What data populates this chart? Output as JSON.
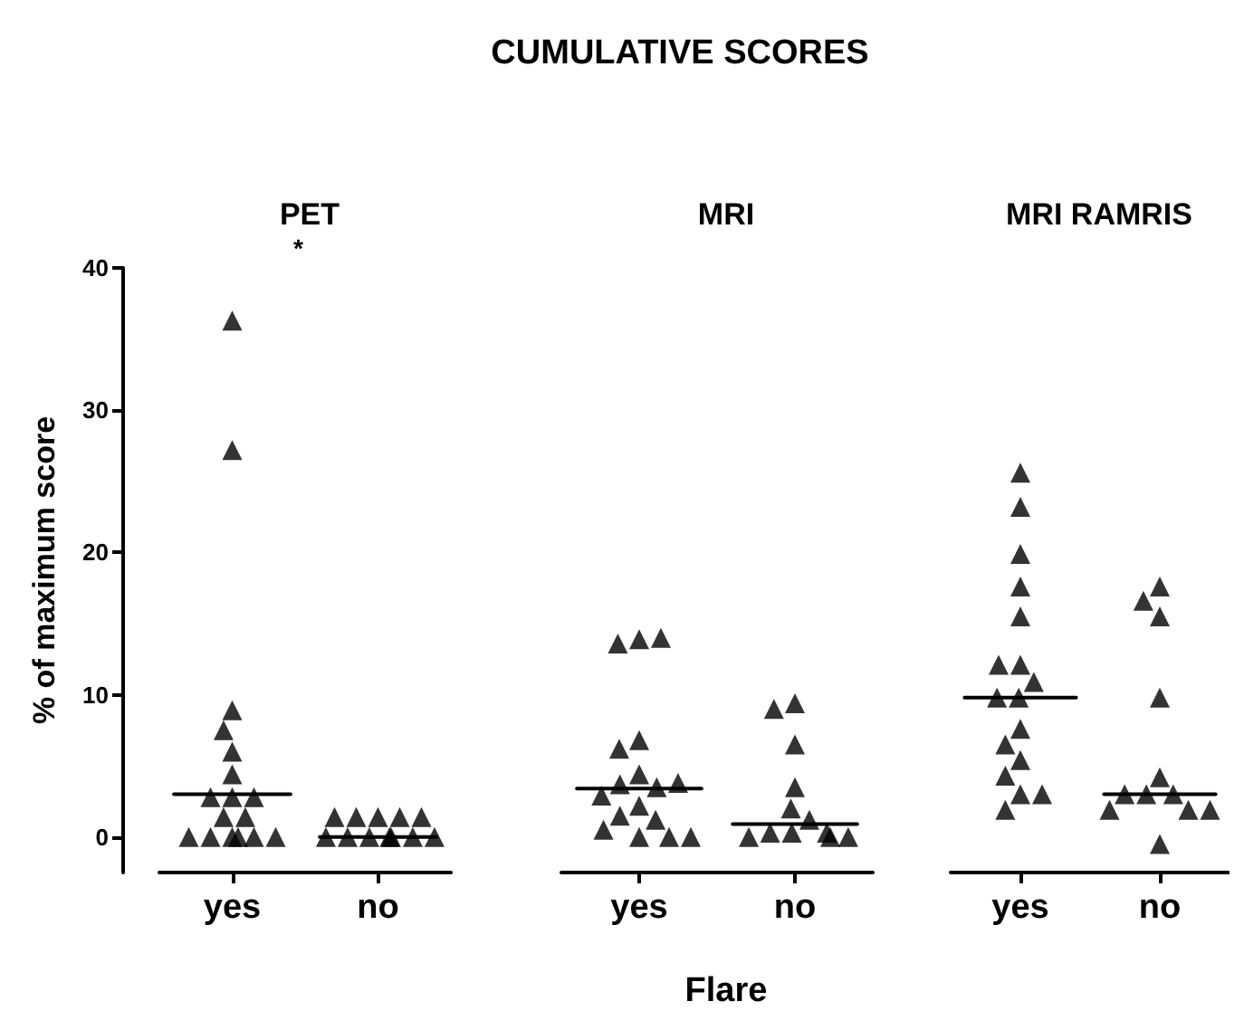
{
  "chart_data": [
    {
      "type": "scatter",
      "title": "PET",
      "ylabel": "% of maximum score",
      "annotations": [
        "*"
      ],
      "categories": [
        "yes",
        "no"
      ],
      "ylim": [
        -2.5,
        40
      ],
      "yticks": [
        0,
        10,
        20,
        30,
        40
      ],
      "grid": false,
      "series": [
        {
          "marker": "triangle",
          "color": "#000000",
          "x": [
            "yes",
            "yes",
            "yes",
            "yes",
            "yes",
            "yes",
            "yes",
            "yes",
            "yes",
            "yes",
            "yes",
            "yes",
            "yes",
            "yes",
            "yes",
            "yes",
            "yes"
          ],
          "values": [
            36.3,
            27.2,
            8.9,
            7.5,
            6,
            4.4,
            2.8,
            2.8,
            2.8,
            1.4,
            1.4,
            0,
            0,
            0,
            0,
            0,
            0
          ]
        },
        {
          "marker": "triangle",
          "color": "#000000",
          "x": [
            "no",
            "no",
            "no",
            "no",
            "no",
            "no",
            "no",
            "no",
            "no",
            "no",
            "no",
            "no"
          ],
          "values": [
            1.4,
            1.4,
            1.4,
            1.4,
            1.4,
            0,
            0,
            0,
            0,
            0,
            0,
            0
          ]
        }
      ],
      "ref_lines": [
        {
          "axis": "y",
          "value": 3,
          "color": "#000000",
          "line_style": "solid"
        },
        {
          "axis": "y",
          "value": 0,
          "color": "#000000",
          "line_style": "solid"
        }
      ]
    },
    {
      "type": "scatter",
      "title": "MRI",
      "xlabel": "Flare",
      "annotations": [
        "CUMULATIVE SCORES"
      ],
      "tick_labels": "x",
      "categories": [
        "yes",
        "no"
      ],
      "ylim": [
        -2.5,
        40
      ],
      "grid": false,
      "series": [
        {
          "marker": "triangle",
          "color": "#000000",
          "x": [
            "yes",
            "yes",
            "yes",
            "yes",
            "yes",
            "yes",
            "yes",
            "yes",
            "yes",
            "yes",
            "yes",
            "yes",
            "yes",
            "yes",
            "yes",
            "yes",
            "yes"
          ],
          "values": [
            13.9,
            13.6,
            14,
            6.8,
            6.2,
            4.4,
            3.7,
            3.5,
            3.8,
            2.9,
            2.2,
            1.5,
            1.2,
            0.5,
            0,
            0,
            0
          ]
        },
        {
          "marker": "triangle",
          "color": "#000000",
          "x": [
            "no",
            "no",
            "no",
            "no",
            "no",
            "no",
            "no",
            "no",
            "no",
            "no",
            "no",
            "no"
          ],
          "values": [
            9.4,
            9,
            6.5,
            3.5,
            2,
            1.2,
            0.3,
            0.3,
            0.3,
            0,
            0,
            0
          ]
        }
      ],
      "ref_lines": [
        {
          "axis": "y",
          "value": 3.4,
          "color": "#000000",
          "line_style": "solid"
        },
        {
          "axis": "y",
          "value": 0.9,
          "color": "#000000",
          "line_style": "solid"
        }
      ]
    },
    {
      "type": "scatter",
      "title": "MRI RAMRIS",
      "tick_labels": "x",
      "categories": [
        "yes",
        "no"
      ],
      "ylim": [
        -2.5,
        40
      ],
      "grid": false,
      "series": [
        {
          "marker": "triangle",
          "color": "#000000",
          "x": [
            "yes",
            "yes",
            "yes",
            "yes",
            "yes",
            "yes",
            "yes",
            "yes",
            "yes",
            "yes",
            "yes",
            "yes",
            "yes",
            "yes",
            "yes",
            "yes",
            "yes"
          ],
          "values": [
            25.6,
            23.2,
            19.9,
            17.6,
            15.5,
            12.1,
            12.1,
            10.9,
            9.8,
            9.8,
            7.6,
            6.5,
            5.4,
            4.3,
            3,
            3,
            1.9
          ]
        },
        {
          "marker": "triangle",
          "color": "#000000",
          "x": [
            "no",
            "no",
            "no",
            "no",
            "no",
            "no",
            "no",
            "no",
            "no",
            "no",
            "no",
            "no"
          ],
          "values": [
            17.6,
            16.6,
            15.5,
            9.8,
            4.2,
            3,
            3,
            3,
            1.9,
            1.9,
            1.9,
            -0.5
          ]
        }
      ],
      "ref_lines": [
        {
          "axis": "y",
          "value": 9.8,
          "color": "#000000",
          "line_style": "solid"
        },
        {
          "axis": "y",
          "value": 3,
          "color": "#000000",
          "line_style": "solid"
        }
      ]
    }
  ]
}
